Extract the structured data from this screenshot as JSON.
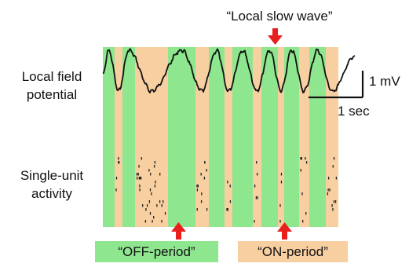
{
  "labels": {
    "lfp_line1": "Local field",
    "lfp_line2": "potential",
    "sua_line1": "Single-unit",
    "sua_line2": "activity",
    "local_slow_wave": "“Local slow wave”",
    "off_period": "“OFF-period”",
    "on_period": "“ON-period”",
    "scale_voltage": "1 mV",
    "scale_time": "1 sec"
  },
  "colors": {
    "off_period": "#8ee68e",
    "on_period": "#f7cfa0",
    "arrow": "#e8201d",
    "trace": "#111111",
    "spikes": "#222222"
  },
  "panel": {
    "period_pattern": [
      "off",
      "on",
      "off",
      "on",
      "off",
      "on",
      "off",
      "on",
      "off",
      "on",
      "off",
      "on",
      "off",
      "on",
      "off",
      "on"
    ]
  }
}
